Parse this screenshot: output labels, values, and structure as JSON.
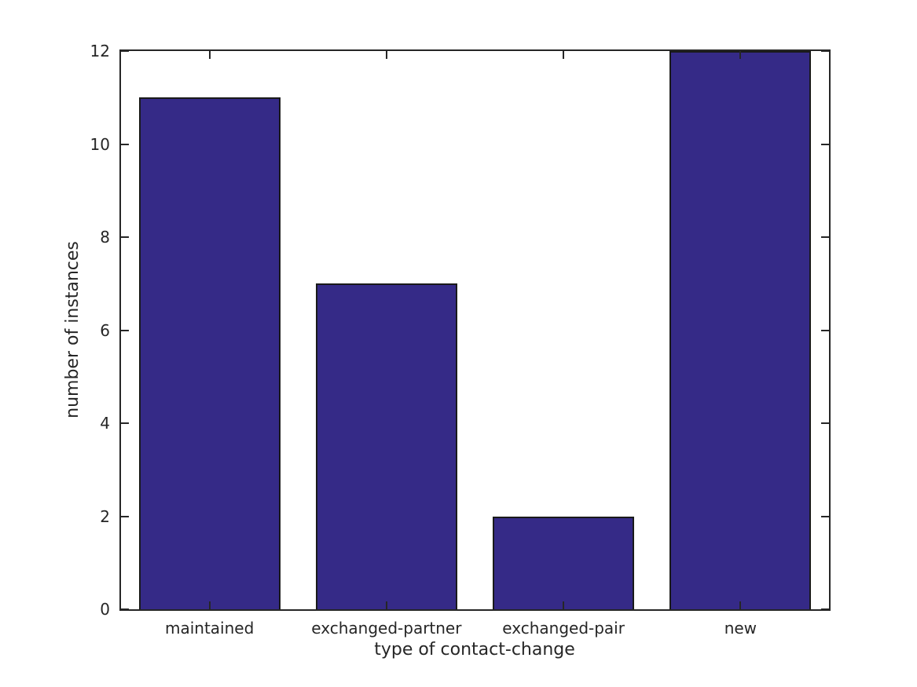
{
  "chart_data": {
    "type": "bar",
    "categories": [
      "maintained",
      "exchanged-partner",
      "exchanged-pair",
      "new"
    ],
    "values": [
      11,
      7,
      2,
      12
    ],
    "title": "",
    "xlabel": "type of contact-change",
    "ylabel": "number of instances",
    "ylim": [
      0,
      12
    ],
    "yticks": [
      0,
      2,
      4,
      6,
      8,
      10,
      12
    ],
    "xlim": [
      0.5,
      4.5
    ],
    "bar_width": 0.8,
    "grid": false,
    "legend": "none",
    "tick_direction": "in",
    "box": true,
    "bar_color": "#352a87",
    "bar_edge_color": "#1a1a1a",
    "axis_color": "#262626",
    "text_color": "#262626",
    "background_color": "#ffffff"
  }
}
